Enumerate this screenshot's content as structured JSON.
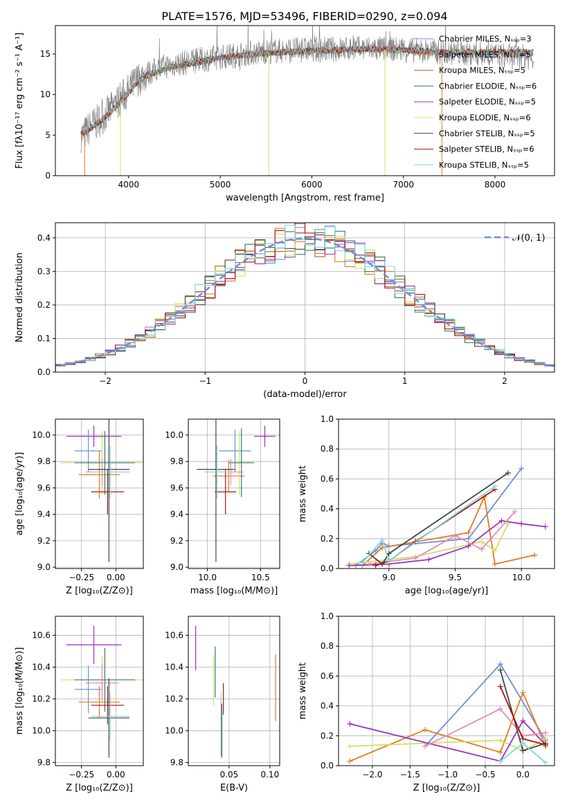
{
  "figure": {
    "title": "PLATE=1576, MJD=53496, FIBERID=0290, z=0.094",
    "colors": {
      "blue": "#6a8fdb",
      "orange": "#e07b20",
      "brown": "#b5651d",
      "teal": "#2e7d6b",
      "purple": "#9b30c0",
      "lime": "#cfe060",
      "darkgray": "#444444",
      "darkred": "#b01010",
      "cyan": "#7fd8dc",
      "pink": "#e88ab8",
      "gray": "#808080"
    }
  },
  "chart_data": [
    {
      "id": "spectrum",
      "type": "line",
      "xlabel": "wavelength [Angstrom, rest frame]",
      "ylabel": "Flux [fλ10⁻¹⁷ erg cm⁻² s⁻¹ A⁻¹]",
      "xlim": [
        3200,
        8650
      ],
      "ylim": [
        0,
        18.5
      ],
      "xticks": [
        4000,
        5000,
        6000,
        7000,
        8000
      ],
      "yticks": [
        0,
        5,
        10,
        15
      ],
      "grid": false,
      "legend_position": "right",
      "legend": [
        {
          "label": "Chabrier MILES, Nₛₛₚ=3",
          "color": "#6a8fdb"
        },
        {
          "label": "Salpeter MILES, Nₛₛₚ=5",
          "color": "#e07b20"
        },
        {
          "label": "Kroupa MILES, Nₛₛₚ=5",
          "color": "#b5651d"
        },
        {
          "label": "Chabrier ELODIE, Nₛₛₚ=6",
          "color": "#2e7d6b"
        },
        {
          "label": "Salpeter ELODIE, Nₛₛₚ=5",
          "color": "#9b30c0"
        },
        {
          "label": "Kroupa ELODIE, Nₛₛₚ=6",
          "color": "#cfe060"
        },
        {
          "label": "Chabrier STELIB, Nₛₛₚ=5",
          "color": "#444444"
        },
        {
          "label": "Salpeter STELIB, Nₛₛₚ=6",
          "color": "#b01010"
        },
        {
          "label": "Kroupa STELIB, Nₛₛₚ=5",
          "color": "#7fd8dc"
        }
      ],
      "continuum": {
        "x": [
          3500,
          3600,
          3700,
          3800,
          3900,
          4000,
          4100,
          4200,
          4400,
          4600,
          4800,
          5000,
          5200,
          5500,
          5800,
          6000,
          6300,
          6600,
          6900,
          7200,
          7400
        ],
        "y": [
          5.2,
          6.0,
          6.8,
          7.8,
          9.0,
          10.2,
          11.5,
          12.4,
          13.2,
          13.7,
          14.1,
          14.5,
          14.8,
          15.1,
          15.3,
          15.4,
          15.5,
          15.6,
          15.5,
          15.4,
          15.2
        ]
      },
      "data_curve": {
        "x": [
          3500,
          3600,
          3700,
          3800,
          3900,
          4000,
          4100,
          4200,
          4400,
          4600,
          4800,
          5000,
          5200,
          5500,
          5800,
          6000,
          6300,
          6600,
          6900,
          7200,
          7500,
          7800,
          8100,
          8400
        ],
        "y": [
          5.0,
          6.2,
          7.0,
          8.1,
          9.4,
          10.5,
          11.9,
          12.6,
          13.5,
          13.9,
          14.3,
          14.6,
          14.9,
          15.3,
          15.5,
          15.5,
          15.6,
          15.7,
          15.6,
          15.4,
          15.2,
          15.0,
          14.8,
          14.6
        ]
      },
      "vertical_dips": [
        {
          "x": 3520,
          "color": "#e07b20"
        },
        {
          "x": 3910,
          "color": "#cfe060"
        },
        {
          "x": 5530,
          "color": "#cfe060"
        },
        {
          "x": 6800,
          "color": "#cfe060"
        },
        {
          "x": 7420,
          "color": "#e07b20"
        }
      ]
    },
    {
      "id": "residuals",
      "type": "histogram",
      "xlabel": "(data-model)/error",
      "ylabel": "Normed distribution",
      "xlim": [
        -2.5,
        2.5
      ],
      "ylim": [
        0,
        0.445
      ],
      "xticks": [
        -2,
        -1,
        0,
        1,
        2
      ],
      "yticks": [
        0.0,
        0.1,
        0.2,
        0.3,
        0.4
      ],
      "grid": true,
      "legend": [
        {
          "label": "𝒩(0, 1)",
          "style": "dashed",
          "color": "#6a8fdb"
        }
      ],
      "legend_position": "top-right",
      "bin_width": 0.1,
      "bin_start": -2.5,
      "base_distribution": {
        "type": "normal",
        "mean": 0,
        "sigma": 1
      },
      "series_colors": [
        "#6a8fdb",
        "#e07b20",
        "#b5651d",
        "#2e7d6b",
        "#9b30c0",
        "#cfe060",
        "#444444",
        "#b01010",
        "#7fd8dc"
      ]
    },
    {
      "id": "age_vs_Z",
      "type": "errorbar",
      "xlabel": "Z [log₁₀(Z/Z⊙)]",
      "ylabel": "age  [log₁₀(age/yr)]",
      "xlim": [
        -0.44,
        0.2
      ],
      "ylim": [
        8.99,
        10.12
      ],
      "xticks": [
        -0.25,
        0.0
      ],
      "yticks": [
        9.0,
        9.2,
        9.4,
        9.6,
        9.8,
        10.0
      ],
      "grid": true,
      "points": [
        {
          "x": -0.2,
          "y": 9.88,
          "xerr": 0.1,
          "yerr": 0.16,
          "color": "#6a8fdb"
        },
        {
          "x": -0.12,
          "y": 9.7,
          "xerr": 0.15,
          "yerr": 0.18,
          "color": "#e07b20"
        },
        {
          "x": -0.1,
          "y": 9.79,
          "xerr": 0.3,
          "yerr": 0.24,
          "color": "#cfe060"
        },
        {
          "x": -0.08,
          "y": 9.79,
          "xerr": 0.22,
          "yerr": 0.24,
          "color": "#2e7d6b"
        },
        {
          "x": -0.16,
          "y": 9.99,
          "xerr": 0.2,
          "yerr": 0.08,
          "color": "#9b30c0"
        },
        {
          "x": -0.1,
          "y": 9.72,
          "xerr": 0.12,
          "yerr": 0.1,
          "color": "#e88ab8"
        },
        {
          "x": -0.05,
          "y": 9.74,
          "xerr": 0.15,
          "yerr": 0.7,
          "color": "#444444"
        },
        {
          "x": -0.06,
          "y": 9.57,
          "xerr": 0.12,
          "yerr": 0.17,
          "color": "#b01010"
        },
        {
          "x": -0.04,
          "y": 9.72,
          "xerr": 0.14,
          "yerr": 0.2,
          "color": "#7fd8dc"
        }
      ]
    },
    {
      "id": "age_vs_mass",
      "type": "errorbar",
      "xlabel": "mass [log₁₀(M/M⊙)]",
      "ylabel": "",
      "xlim": [
        9.82,
        10.68
      ],
      "ylim": [
        8.99,
        10.12
      ],
      "xticks": [
        10.0,
        10.5
      ],
      "yticks": [
        9.0,
        9.2,
        9.4,
        9.6,
        9.8,
        10.0
      ],
      "grid": true,
      "points": [
        {
          "x": 10.26,
          "y": 9.88,
          "xerr": 0.15,
          "yerr": 0.16,
          "color": "#6a8fdb"
        },
        {
          "x": 10.2,
          "y": 9.69,
          "xerr": 0.15,
          "yerr": 0.12,
          "color": "#e07b20"
        },
        {
          "x": 10.3,
          "y": 9.79,
          "xerr": 0.1,
          "yerr": 0.24,
          "color": "#cfe060"
        },
        {
          "x": 10.32,
          "y": 9.79,
          "xerr": 0.12,
          "yerr": 0.26,
          "color": "#2e7d6b"
        },
        {
          "x": 10.54,
          "y": 9.99,
          "xerr": 0.1,
          "yerr": 0.08,
          "color": "#9b30c0"
        },
        {
          "x": 10.22,
          "y": 9.72,
          "xerr": 0.12,
          "yerr": 0.1,
          "color": "#e88ab8"
        },
        {
          "x": 10.08,
          "y": 9.74,
          "xerr": 0.18,
          "yerr": 0.7,
          "color": "#444444"
        },
        {
          "x": 10.17,
          "y": 9.57,
          "xerr": 0.1,
          "yerr": 0.17,
          "color": "#b01010"
        },
        {
          "x": 10.09,
          "y": 9.72,
          "xerr": 0.12,
          "yerr": 0.2,
          "color": "#7fd8dc"
        }
      ]
    },
    {
      "id": "weight_vs_age",
      "type": "line",
      "xlabel": "age  [log₁₀(age/yr)]",
      "ylabel": "mass weight",
      "xlim": [
        8.62,
        10.25
      ],
      "ylim": [
        0,
        1.0
      ],
      "xticks": [
        9.0,
        9.5,
        10.0
      ],
      "yticks": [
        0.0,
        0.2,
        0.4,
        0.6,
        0.8,
        1.0
      ],
      "grid": true,
      "series": [
        {
          "color": "#6a8fdb",
          "x": [
            8.75,
            8.9,
            8.95,
            9.0,
            9.6,
            10.0
          ],
          "y": [
            0.02,
            0.12,
            0.17,
            0.15,
            0.2,
            0.67
          ]
        },
        {
          "color": "#e07b20",
          "x": [
            8.8,
            8.95,
            9.6,
            9.72,
            9.8,
            10.1
          ],
          "y": [
            0.02,
            0.14,
            0.24,
            0.48,
            0.03,
            0.09
          ]
        },
        {
          "color": "#cfe060",
          "x": [
            8.7,
            8.9,
            9.2,
            9.7,
            9.8,
            9.9
          ],
          "y": [
            0.03,
            0.05,
            0.08,
            0.18,
            0.12,
            0.3
          ]
        },
        {
          "color": "#9b30c0",
          "x": [
            8.7,
            9.0,
            9.3,
            9.6,
            9.85,
            10.0,
            10.18
          ],
          "y": [
            0.02,
            0.03,
            0.06,
            0.15,
            0.32,
            0.3,
            0.28
          ]
        },
        {
          "color": "#e88ab8",
          "x": [
            8.85,
            9.2,
            9.5,
            9.7,
            9.95
          ],
          "y": [
            0.03,
            0.07,
            0.22,
            0.13,
            0.38
          ]
        },
        {
          "color": "#444444",
          "x": [
            8.85,
            8.95,
            9.0,
            9.9
          ],
          "y": [
            0.1,
            0.03,
            0.1,
            0.64
          ]
        },
        {
          "color": "#b01010",
          "x": [
            8.9,
            9.0,
            9.2,
            9.8
          ],
          "y": [
            0.02,
            0.05,
            0.18,
            0.53
          ]
        },
        {
          "color": "#7fd8dc",
          "x": [
            8.8,
            8.95,
            9.0,
            9.8
          ],
          "y": [
            0.04,
            0.19,
            0.05,
            0.55
          ]
        }
      ]
    },
    {
      "id": "mass_vs_Z",
      "type": "errorbar",
      "xlabel": "Z [log₁₀(Z/Z⊙)]",
      "ylabel": "mass [log₁₀(M/M⊙)]",
      "xlim": [
        -0.44,
        0.2
      ],
      "ylim": [
        9.78,
        10.72
      ],
      "xticks": [
        -0.25,
        0.0
      ],
      "yticks": [
        9.8,
        10.0,
        10.2,
        10.4,
        10.6
      ],
      "grid": true,
      "points": [
        {
          "x": -0.2,
          "y": 10.26,
          "xerr": 0.1,
          "yerr": 0.15,
          "color": "#6a8fdb"
        },
        {
          "x": -0.12,
          "y": 10.18,
          "xerr": 0.15,
          "yerr": 0.1,
          "color": "#e07b20"
        },
        {
          "x": -0.1,
          "y": 10.32,
          "xerr": 0.3,
          "yerr": 0.15,
          "color": "#cfe060"
        },
        {
          "x": -0.08,
          "y": 10.32,
          "xerr": 0.22,
          "yerr": 0.2,
          "color": "#2e7d6b"
        },
        {
          "x": -0.16,
          "y": 10.54,
          "xerr": 0.2,
          "yerr": 0.12,
          "color": "#9b30c0"
        },
        {
          "x": -0.1,
          "y": 10.3,
          "xerr": 0.12,
          "yerr": 0.12,
          "color": "#e88ab8"
        },
        {
          "x": -0.05,
          "y": 10.08,
          "xerr": 0.15,
          "yerr": 0.25,
          "color": "#444444"
        },
        {
          "x": -0.06,
          "y": 10.16,
          "xerr": 0.12,
          "yerr": 0.12,
          "color": "#b01010"
        },
        {
          "x": -0.04,
          "y": 10.09,
          "xerr": 0.14,
          "yerr": 0.15,
          "color": "#7fd8dc"
        }
      ]
    },
    {
      "id": "mass_vs_EBV",
      "type": "errorbar",
      "xlabel": "E(B-V)",
      "ylabel": "",
      "xlim": [
        0.0,
        0.112
      ],
      "ylim": [
        9.78,
        10.72
      ],
      "xticks": [
        0.05,
        0.1
      ],
      "yticks": [
        9.8,
        10.0,
        10.2,
        10.4,
        10.6
      ],
      "grid": true,
      "points": [
        {
          "x": 0.009,
          "y": 10.52,
          "yerr": 0.14,
          "color": "#9b30c0"
        },
        {
          "x": 0.031,
          "y": 10.32,
          "yerr": 0.16,
          "color": "#cfe060"
        },
        {
          "x": 0.033,
          "y": 10.37,
          "yerr": 0.16,
          "color": "#2e7d6b"
        },
        {
          "x": 0.04,
          "y": 10.04,
          "yerr": 0.2,
          "color": "#7fd8dc"
        },
        {
          "x": 0.041,
          "y": 10.0,
          "yerr": 0.17,
          "color": "#444444"
        },
        {
          "x": 0.043,
          "y": 10.2,
          "yerr": 0.1,
          "color": "#b01010"
        },
        {
          "x": 0.107,
          "y": 10.27,
          "yerr": 0.21,
          "color": "#e07b20"
        }
      ]
    },
    {
      "id": "weight_vs_Z",
      "type": "line",
      "xlabel": "Z [log₁₀(Z/Z⊙)]",
      "ylabel": "mass weight",
      "xlim": [
        -2.45,
        0.42
      ],
      "ylim": [
        0,
        1.0
      ],
      "xticks": [
        -2.0,
        -1.5,
        -1.0,
        -0.5,
        0.0
      ],
      "yticks": [
        0.0,
        0.2,
        0.4,
        0.6,
        0.8,
        1.0
      ],
      "grid": true,
      "series": [
        {
          "color": "#6a8fdb",
          "x": [
            -1.3,
            -0.3,
            0.3
          ],
          "y": [
            0.13,
            0.68,
            0.17
          ]
        },
        {
          "color": "#e07b20",
          "x": [
            -2.3,
            -1.3,
            -0.3,
            0.0,
            0.3
          ],
          "y": [
            0.03,
            0.24,
            0.09,
            0.49,
            0.13
          ]
        },
        {
          "color": "#cfe060",
          "x": [
            -2.3,
            -0.3,
            0.0,
            0.3
          ],
          "y": [
            0.13,
            0.17,
            0.1,
            0.18
          ]
        },
        {
          "color": "#9b30c0",
          "x": [
            -2.3,
            -0.3,
            0.0,
            0.3
          ],
          "y": [
            0.28,
            0.03,
            0.3,
            0.14
          ]
        },
        {
          "color": "#e88ab8",
          "x": [
            -1.3,
            -0.3,
            0.0,
            0.3
          ],
          "y": [
            0.13,
            0.38,
            0.2,
            0.22
          ]
        },
        {
          "color": "#444444",
          "x": [
            -0.3,
            0.0,
            0.3
          ],
          "y": [
            0.64,
            0.1,
            0.15
          ]
        },
        {
          "color": "#b01010",
          "x": [
            -0.3,
            0.0,
            0.3
          ],
          "y": [
            0.53,
            0.18,
            0.14
          ]
        },
        {
          "color": "#7fd8dc",
          "x": [
            -0.3,
            0.0,
            0.3
          ],
          "y": [
            0.03,
            0.15,
            0.02
          ]
        }
      ]
    }
  ]
}
